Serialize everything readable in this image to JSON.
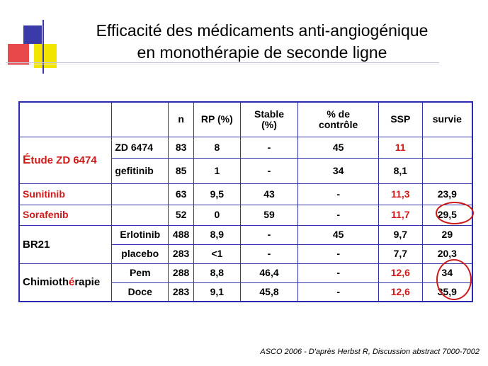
{
  "title": {
    "line1": "Efficacité des médicaments anti-angiogénique",
    "line2": "en monothérapie de seconde ligne"
  },
  "table": {
    "headers": [
      "",
      "",
      "n",
      "RP (%)",
      "Stable (%)",
      "% de contrôle",
      "SSP",
      "survie"
    ],
    "rows": [
      {
        "group": "Étude ZD 6474",
        "group_first_letter": "É",
        "group_rest": "tude ZD 6474",
        "arm": "ZD 6474",
        "n": "83",
        "rp": "8",
        "stable": "-",
        "controle": "45",
        "ssp": "11",
        "survie": ""
      },
      {
        "arm": "gefitinib",
        "n": "85",
        "rp": "1",
        "stable": "-",
        "controle": "34",
        "ssp": "8,1",
        "survie": ""
      },
      {
        "group": "Sunitinib",
        "arm": "",
        "n": "63",
        "rp": "9,5",
        "stable": "43",
        "controle": "-",
        "ssp": "11,3",
        "survie": "23,9"
      },
      {
        "group": "Sorafenib",
        "arm": "",
        "n": "52",
        "rp": "0",
        "stable": "59",
        "controle": "-",
        "ssp": "11,7",
        "survie": "29,5"
      },
      {
        "group": "BR21",
        "arm": "Erlotinib",
        "n": "488",
        "rp": "8,9",
        "stable": "-",
        "controle": "45",
        "ssp": "9,7",
        "survie": "29"
      },
      {
        "arm": "placebo",
        "n": "283",
        "rp": "<1",
        "stable": "-",
        "controle": "-",
        "ssp": "7,7",
        "survie": "20,3"
      },
      {
        "group": "Chimiothérapie",
        "group_part1": "Chimioth",
        "group_part2": "é",
        "group_part3": "rapie",
        "arm": "Pem",
        "n": "288",
        "rp": "8,8",
        "stable": "46,4",
        "controle": "-",
        "ssp": "12,6",
        "survie": "34"
      },
      {
        "arm": "Doce",
        "n": "283",
        "rp": "9,1",
        "stable": "45,8",
        "controle": "-",
        "ssp": "12,6",
        "survie": "35,9"
      }
    ]
  },
  "footer": "ASCO 2006 - D'après Herbst R, Discussion  abstract 7000-7002",
  "colors": {
    "highlight_red": "#d21919",
    "table_border": "#2a2ab0"
  }
}
